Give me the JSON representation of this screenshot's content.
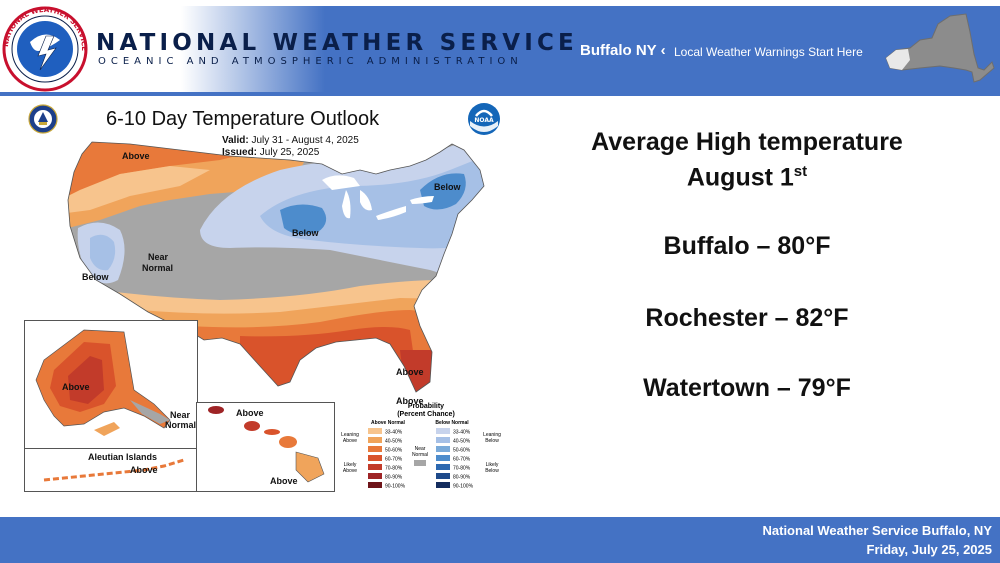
{
  "header": {
    "agency_title": "NATIONAL WEATHER SERVICE",
    "agency_subtitle": "OCEANIC AND ATMOSPHERIC ADMINISTRATION",
    "office": "Buffalo NY",
    "separator": "‹",
    "tagline": "Local Weather Warnings Start Here",
    "logo_ring_text": "NATIONAL WEATHER SERVICE",
    "accent_color": "#4472c4"
  },
  "map": {
    "title": "6-10 Day Temperature Outlook",
    "valid_label": "Valid:",
    "valid_value": "July 31 - August 4, 2025",
    "issued_label": "Issued:",
    "issued_value": "July 25, 2025",
    "noaa_text": "NOAA",
    "region_labels": {
      "above_nw": "Above",
      "below_ne": "Below",
      "below_mw": "Below",
      "near_normal_line1": "Near",
      "near_normal_line2": "Normal",
      "below_west": "Below",
      "above_fl": "Above",
      "above_se": "Above",
      "above_ak": "Above",
      "near_ak_1": "Near",
      "near_ak_2": "Normal",
      "aleutian": "Aleutian Islands",
      "above_al": "Above",
      "above_hi1": "Above",
      "above_hi2": "Above"
    },
    "legend": {
      "title_1": "Probability",
      "title_2": "(Percent Chance)",
      "above_header": "Above Normal",
      "below_header": "Below Normal",
      "leaning_above_1": "Leaning",
      "leaning_above_2": "Above",
      "likely_above_1": "Likely",
      "likely_above_2": "Above",
      "near_1": "Near",
      "near_2": "Normal",
      "leaning_below_1": "Leaning",
      "leaning_below_2": "Below",
      "likely_below_1": "Likely",
      "likely_below_2": "Below",
      "ranges": [
        "33-40%",
        "40-50%",
        "50-60%",
        "60-70%",
        "70-80%",
        "80-90%",
        "90-100%"
      ],
      "above_colors": [
        "#f7c48d",
        "#f0a45b",
        "#e8793a",
        "#d9532b",
        "#c23b2a",
        "#9e2426",
        "#6e1419"
      ],
      "below_colors": [
        "#c7d3ec",
        "#a6c0e6",
        "#7aaad9",
        "#4d8ccc",
        "#2c68b0",
        "#1e4a8a",
        "#142c5e"
      ],
      "near_color": "#a6a6a6"
    }
  },
  "right_panel": {
    "heading_line1": "Average High temperature",
    "heading_line2": "August 1",
    "heading_sup": "st",
    "cities": [
      {
        "text": "Buffalo – 80°F"
      },
      {
        "text": "Rochester – 82°F"
      },
      {
        "text": "Watertown – 79°F"
      }
    ]
  },
  "footer": {
    "line1": "National Weather Service Buffalo, NY",
    "line2": "Friday, July 25, 2025"
  }
}
